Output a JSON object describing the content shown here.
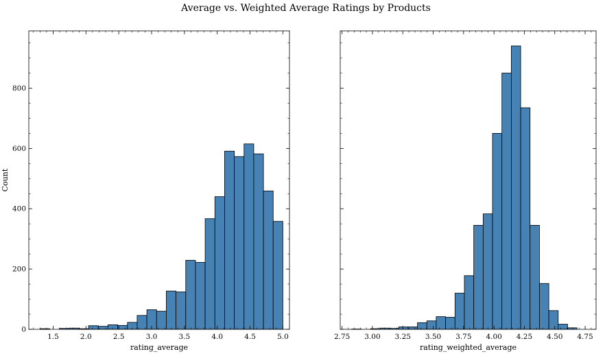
{
  "figure": {
    "title": "Average vs. Weighted Average Ratings by Products"
  },
  "chart_data": [
    {
      "type": "bar",
      "subtype": "histogram",
      "xlabel": "rating_average",
      "ylabel": "Count",
      "xlim": [
        1.13,
        5.1
      ],
      "ylim": [
        0,
        990
      ],
      "xticks": [
        "1.5",
        "2.0",
        "2.5",
        "3.0",
        "3.5",
        "4.0",
        "4.5",
        "5.0"
      ],
      "xtick_values": [
        1.5,
        2.0,
        2.5,
        3.0,
        3.5,
        4.0,
        4.5,
        5.0
      ],
      "yticks": [
        "0",
        "200",
        "400",
        "600",
        "800"
      ],
      "ytick_values": [
        0,
        200,
        400,
        600,
        800
      ],
      "bin_start": 1.3,
      "bin_width": 0.148,
      "values": [
        2,
        0,
        3,
        4,
        2,
        12,
        10,
        15,
        13,
        23,
        46,
        65,
        60,
        127,
        124,
        229,
        222,
        367,
        440,
        591,
        573,
        615,
        582,
        459,
        358
      ],
      "bar_color": "#4682b4",
      "edge_color": "#000000",
      "grid": false
    },
    {
      "type": "bar",
      "subtype": "histogram",
      "xlabel": "rating_weighted_average",
      "ylabel": "",
      "xlim": [
        2.735,
        4.84
      ],
      "ylim": [
        0,
        990
      ],
      "xticks": [
        "2.75",
        "3.00",
        "3.25",
        "3.50",
        "3.75",
        "4.00",
        "4.25",
        "4.50",
        "4.75"
      ],
      "xtick_values": [
        2.75,
        3.0,
        3.25,
        3.5,
        3.75,
        4.0,
        4.25,
        4.5,
        4.75
      ],
      "yticks": [],
      "ytick_values": [
        0,
        200,
        400,
        600,
        800
      ],
      "bin_start": 2.83,
      "bin_width": 0.0772,
      "values": [
        1,
        0,
        2,
        4,
        3,
        8,
        8,
        22,
        28,
        42,
        40,
        120,
        178,
        345,
        383,
        650,
        850,
        940,
        735,
        345,
        152,
        62,
        17,
        5
      ],
      "bar_color": "#4682b4",
      "edge_color": "#000000",
      "grid": false
    }
  ]
}
